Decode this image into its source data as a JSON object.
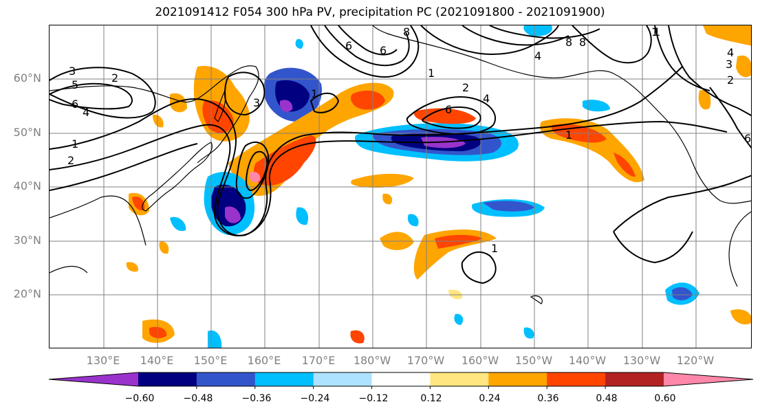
{
  "title": "2021091412 F054 300 hPa PV, precipitation PC (2021091800 - 2021091900)",
  "lat_labels": [
    "60°N",
    "50°N",
    "40°N",
    "30°N",
    "20°N"
  ],
  "lon_labels": [
    "130°E",
    "140°E",
    "150°E",
    "160°E",
    "170°E",
    "180°W",
    "170°W",
    "160°W",
    "150°W",
    "140°W",
    "130°W",
    "120°W"
  ],
  "colorbar": {
    "colors": [
      "#9933cc",
      "#000080",
      "#3355cc",
      "#00bfff",
      "#aee3ff",
      "#ffffff",
      "#ffe680",
      "#ffa500",
      "#ff4500",
      "#b22222",
      "#ff88aa"
    ],
    "tick_labels": [
      "−0.60",
      "−0.48",
      "−0.36",
      "−0.24",
      "−0.12",
      "0.12",
      "0.24",
      "0.36",
      "0.48",
      "0.60"
    ]
  },
  "contour_labels": [
    "3",
    "5",
    "6",
    "4",
    "1",
    "2",
    "2",
    "3",
    "6",
    "8",
    "6",
    "8",
    "1",
    "2",
    "4",
    "6",
    "8",
    "1",
    "1",
    "4",
    "3",
    "2",
    "6",
    "1",
    "1",
    "1",
    "4"
  ],
  "legend_colors": {
    "contour": "#000000",
    "grid": "#808080",
    "coast": "#000000"
  }
}
